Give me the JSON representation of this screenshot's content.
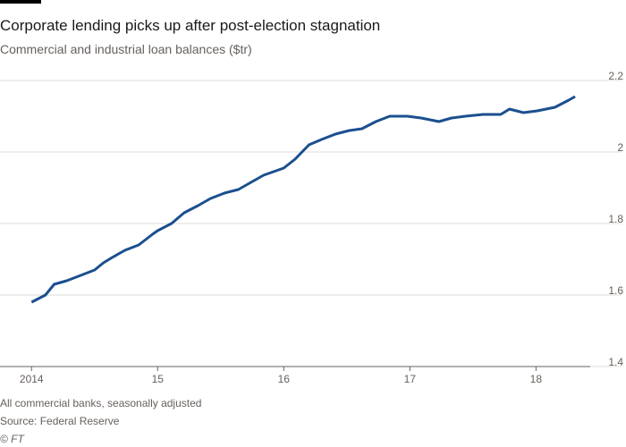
{
  "chart_data": {
    "type": "line",
    "title": "Corporate lending picks up after post-election stagnation",
    "subtitle": "Commercial and industrial loan balances ($tr)",
    "notes": [
      "All commercial banks, seasonally adjusted",
      "Source: Federal Reserve",
      "© FT"
    ],
    "x": [
      2014.0,
      2014.11,
      2014.18,
      2014.28,
      2014.39,
      2014.5,
      2014.57,
      2014.64,
      2014.74,
      2014.85,
      2014.96,
      2015.0,
      2015.11,
      2015.21,
      2015.32,
      2015.42,
      2015.53,
      2015.64,
      2015.74,
      2015.84,
      2016.0,
      2016.09,
      2016.2,
      2016.3,
      2016.41,
      2016.52,
      2016.62,
      2016.73,
      2016.84,
      2016.98,
      2017.09,
      2017.23,
      2017.33,
      2017.44,
      2017.58,
      2017.72,
      2017.79,
      2017.9,
      2018.01,
      2018.15,
      2018.26,
      2018.31
    ],
    "series": [
      {
        "name": "Commercial and industrial loan balances",
        "color": "#1b4f8f",
        "values": [
          1.58,
          1.6,
          1.63,
          1.64,
          1.655,
          1.67,
          1.69,
          1.705,
          1.725,
          1.74,
          1.77,
          1.78,
          1.8,
          1.83,
          1.85,
          1.87,
          1.885,
          1.895,
          1.915,
          1.935,
          1.955,
          1.98,
          2.02,
          2.035,
          2.05,
          2.06,
          2.065,
          2.085,
          2.1,
          2.1,
          2.095,
          2.085,
          2.095,
          2.1,
          2.105,
          2.105,
          2.12,
          2.11,
          2.115,
          2.125,
          2.145,
          2.155
        ]
      }
    ],
    "xlim": [
      2013.75,
      2018.43
    ],
    "xticks": [
      2014,
      {
        "value": 2015,
        "label": "15"
      },
      {
        "value": 2016,
        "label": "16"
      },
      {
        "value": 2017,
        "label": "17"
      },
      {
        "value": 2018,
        "label": "18"
      }
    ],
    "ylim": [
      1.4,
      2.2
    ],
    "yticks": [
      1.4,
      1.6,
      1.8,
      2.0,
      2.2
    ],
    "grid": true
  }
}
